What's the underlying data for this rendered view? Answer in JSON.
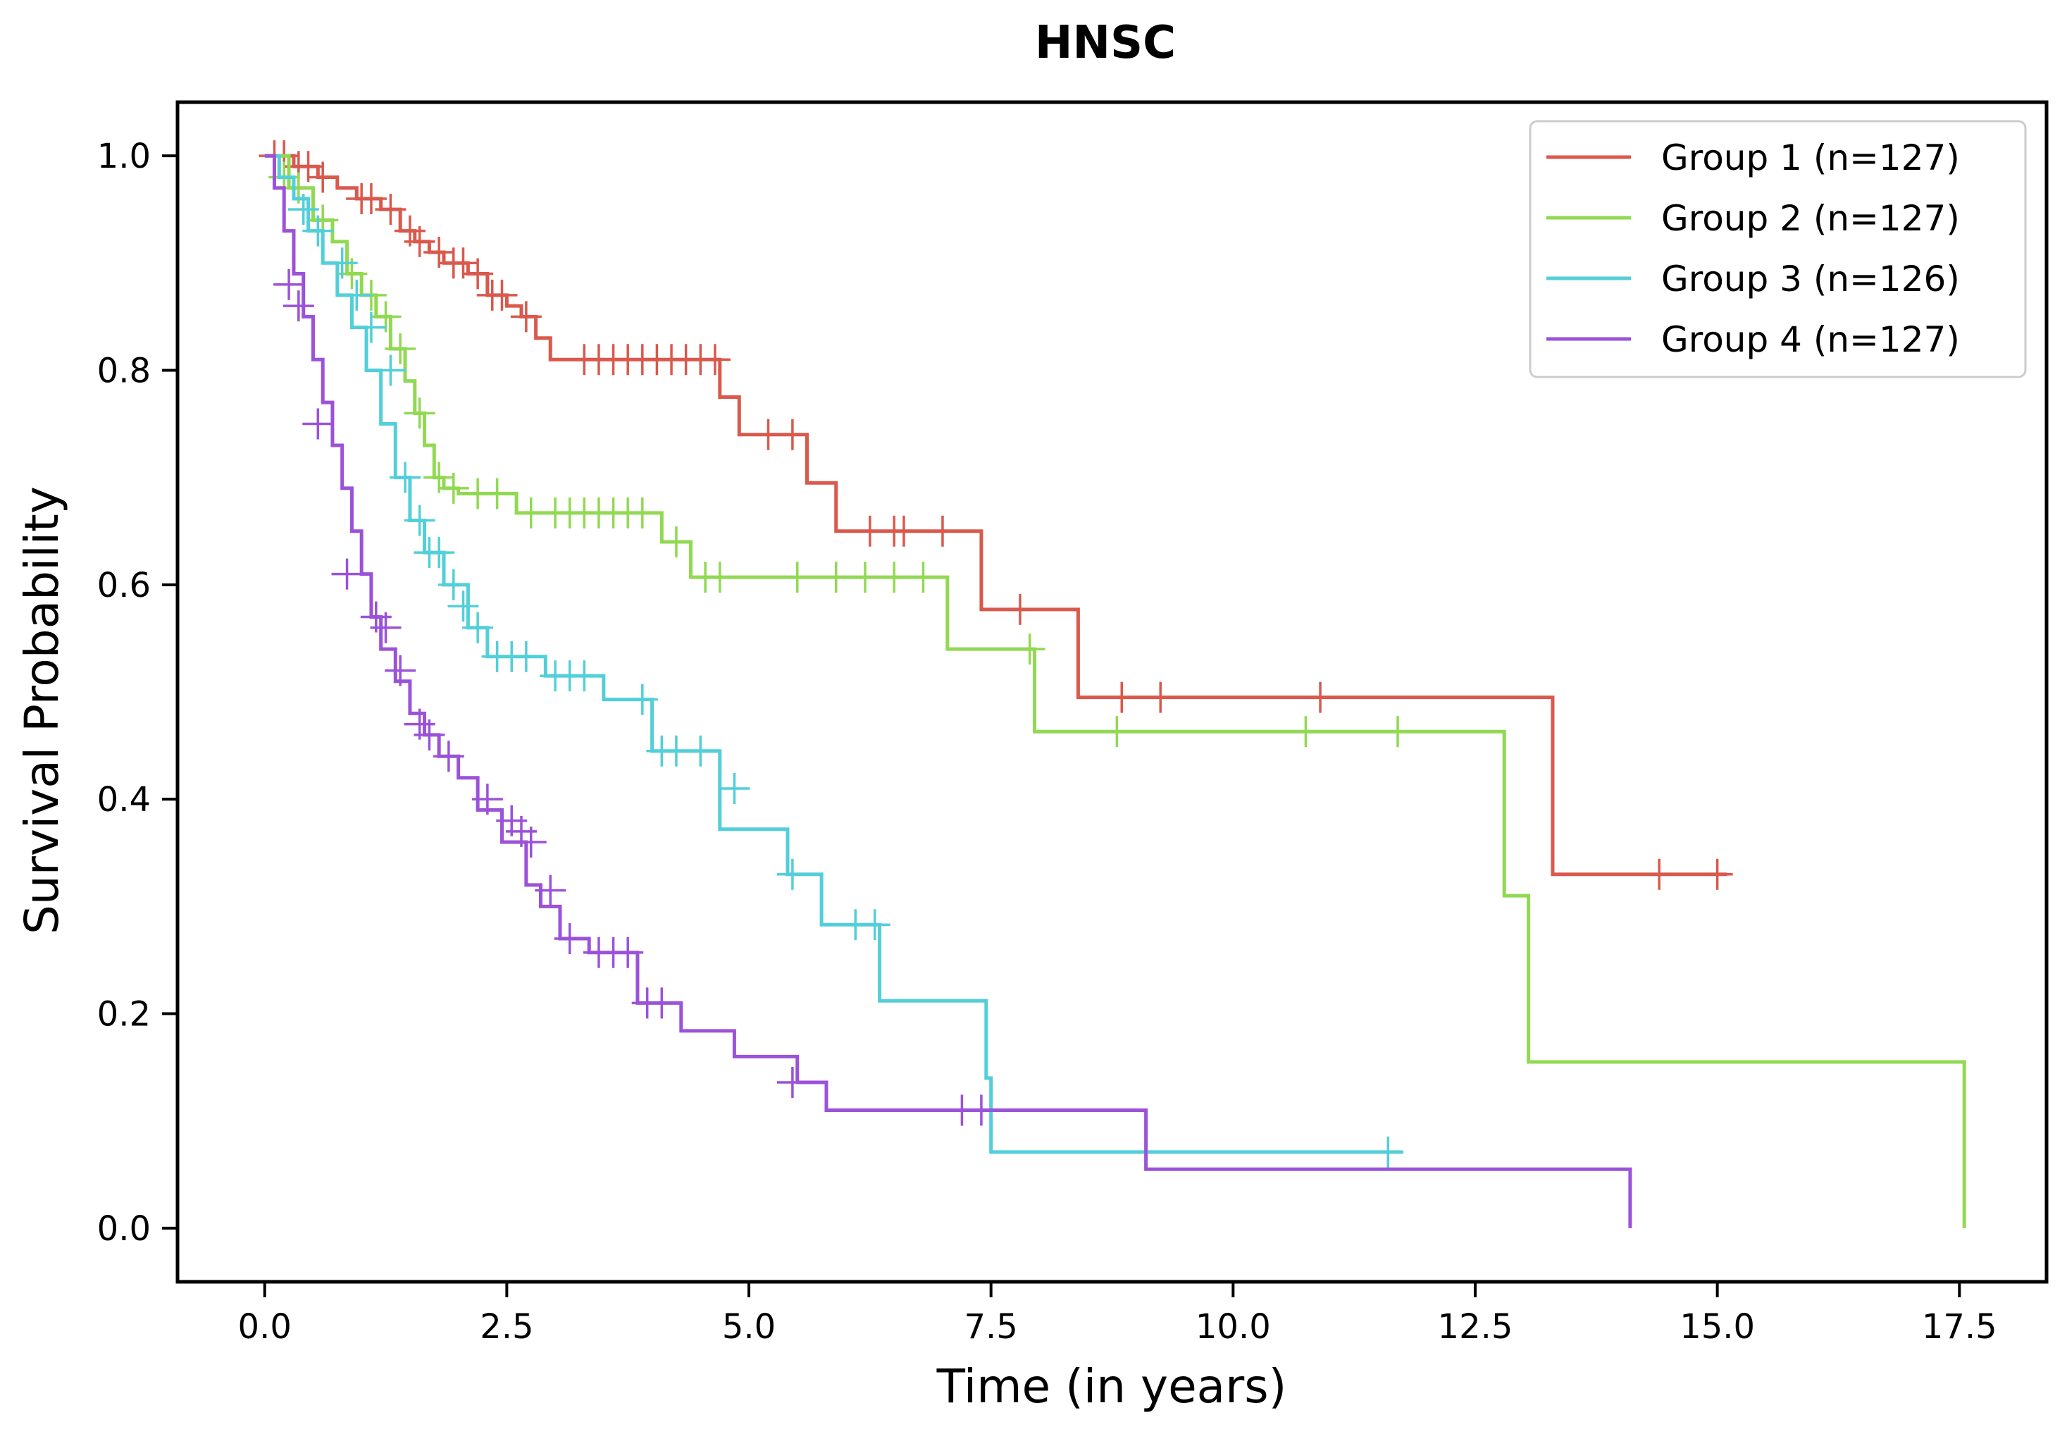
{
  "chart_data": {
    "type": "line",
    "title": "HNSC",
    "xlabel": "Time (in years)",
    "ylabel": "Survival Probability",
    "xlim": [
      -0.9,
      18.4
    ],
    "ylim": [
      -0.05,
      1.05
    ],
    "xticks": [
      0.0,
      2.5,
      5.0,
      7.5,
      10.0,
      12.5,
      15.0,
      17.5
    ],
    "xtick_labels": [
      "0.0",
      "2.5",
      "5.0",
      "7.5",
      "10.0",
      "12.5",
      "15.0",
      "17.5"
    ],
    "yticks": [
      0.0,
      0.2,
      0.4,
      0.6,
      0.8,
      1.0
    ],
    "ytick_labels": [
      "0.0",
      "0.2",
      "0.4",
      "0.6",
      "0.8",
      "1.0"
    ],
    "grid": false,
    "legend_position": "top-right",
    "step": "post",
    "series": [
      {
        "name": "Group 1 (n=127)",
        "color": "#d9594c",
        "x": [
          0.0,
          0.3,
          0.55,
          0.75,
          0.95,
          1.2,
          1.4,
          1.55,
          1.7,
          1.85,
          2.1,
          2.3,
          2.5,
          2.65,
          2.8,
          2.95,
          4.7,
          4.9,
          5.6,
          5.9,
          7.4,
          8.4,
          13.3,
          15.1
        ],
        "y": [
          1.0,
          0.99,
          0.98,
          0.97,
          0.96,
          0.95,
          0.93,
          0.92,
          0.91,
          0.9,
          0.89,
          0.87,
          0.86,
          0.85,
          0.83,
          0.81,
          0.775,
          0.74,
          0.695,
          0.65,
          0.577,
          0.495,
          0.33,
          0.33
        ],
        "censor_x": [
          0.1,
          0.2,
          0.35,
          0.45,
          0.6,
          1.0,
          1.1,
          1.3,
          1.5,
          1.6,
          1.8,
          1.95,
          2.05,
          2.2,
          2.35,
          2.45,
          2.7,
          3.3,
          3.45,
          3.6,
          3.75,
          3.9,
          4.05,
          4.2,
          4.35,
          4.5,
          4.65,
          5.2,
          5.45,
          6.25,
          6.5,
          6.6,
          7.0,
          7.8,
          8.85,
          9.25,
          10.9,
          14.4,
          15.0
        ],
        "censor_y": [
          1.0,
          1.0,
          0.99,
          0.99,
          0.98,
          0.96,
          0.96,
          0.95,
          0.93,
          0.92,
          0.91,
          0.9,
          0.9,
          0.89,
          0.87,
          0.87,
          0.85,
          0.81,
          0.81,
          0.81,
          0.81,
          0.81,
          0.81,
          0.81,
          0.81,
          0.81,
          0.81,
          0.74,
          0.74,
          0.65,
          0.65,
          0.65,
          0.65,
          0.577,
          0.495,
          0.495,
          0.495,
          0.33,
          0.33
        ]
      },
      {
        "name": "Group 2 (n=127)",
        "color": "#91d952",
        "x": [
          0.0,
          0.25,
          0.5,
          0.7,
          0.85,
          1.0,
          1.15,
          1.3,
          1.45,
          1.55,
          1.65,
          1.75,
          1.85,
          2.0,
          2.6,
          4.1,
          4.4,
          7.05,
          7.95,
          12.8,
          13.05,
          17.55
        ],
        "y": [
          1.0,
          0.97,
          0.94,
          0.92,
          0.89,
          0.87,
          0.85,
          0.82,
          0.79,
          0.76,
          0.73,
          0.7,
          0.69,
          0.685,
          0.667,
          0.64,
          0.607,
          0.54,
          0.463,
          0.31,
          0.155,
          0.0
        ],
        "censor_x": [
          0.2,
          0.35,
          0.6,
          0.9,
          1.1,
          1.25,
          1.4,
          1.6,
          1.8,
          1.95,
          2.2,
          2.4,
          2.75,
          3.0,
          3.15,
          3.3,
          3.45,
          3.6,
          3.75,
          3.9,
          4.25,
          4.55,
          4.7,
          5.5,
          5.9,
          6.2,
          6.5,
          6.8,
          7.9,
          8.8,
          10.75,
          11.7
        ],
        "censor_y": [
          0.98,
          0.97,
          0.94,
          0.89,
          0.87,
          0.85,
          0.82,
          0.76,
          0.7,
          0.69,
          0.685,
          0.685,
          0.667,
          0.667,
          0.667,
          0.667,
          0.667,
          0.667,
          0.667,
          0.667,
          0.64,
          0.607,
          0.607,
          0.607,
          0.607,
          0.607,
          0.607,
          0.607,
          0.54,
          0.463,
          0.463,
          0.463
        ]
      },
      {
        "name": "Group 3 (n=126)",
        "color": "#52cfd9",
        "x": [
          0.0,
          0.15,
          0.3,
          0.45,
          0.6,
          0.75,
          0.9,
          1.05,
          1.2,
          1.35,
          1.5,
          1.65,
          1.85,
          2.1,
          2.3,
          2.9,
          3.5,
          4.0,
          4.7,
          5.4,
          5.75,
          6.35,
          7.45,
          7.5,
          11.75
        ],
        "y": [
          1.0,
          0.98,
          0.96,
          0.93,
          0.9,
          0.87,
          0.84,
          0.8,
          0.75,
          0.7,
          0.66,
          0.63,
          0.6,
          0.56,
          0.533,
          0.515,
          0.493,
          0.445,
          0.372,
          0.33,
          0.283,
          0.212,
          0.14,
          0.071,
          0.071
        ],
        "censor_x": [
          0.4,
          0.55,
          0.8,
          0.95,
          1.1,
          1.3,
          1.45,
          1.6,
          1.7,
          1.8,
          1.95,
          2.05,
          2.2,
          2.4,
          2.55,
          2.7,
          3.0,
          3.15,
          3.3,
          3.9,
          4.1,
          4.25,
          4.5,
          4.85,
          5.45,
          6.1,
          6.3,
          11.6
        ],
        "censor_y": [
          0.95,
          0.93,
          0.9,
          0.87,
          0.84,
          0.8,
          0.7,
          0.66,
          0.63,
          0.63,
          0.6,
          0.58,
          0.56,
          0.533,
          0.533,
          0.533,
          0.515,
          0.515,
          0.515,
          0.493,
          0.445,
          0.445,
          0.445,
          0.41,
          0.33,
          0.283,
          0.283,
          0.071
        ]
      },
      {
        "name": "Group 4 (n=127)",
        "color": "#9b52d9",
        "x": [
          0.0,
          0.1,
          0.2,
          0.3,
          0.4,
          0.5,
          0.6,
          0.7,
          0.8,
          0.9,
          1.0,
          1.1,
          1.2,
          1.35,
          1.5,
          1.65,
          1.8,
          2.0,
          2.2,
          2.45,
          2.7,
          2.85,
          3.05,
          3.35,
          3.85,
          4.3,
          4.85,
          5.5,
          5.8,
          9.1,
          14.1
        ],
        "y": [
          1.0,
          0.97,
          0.93,
          0.89,
          0.85,
          0.81,
          0.77,
          0.73,
          0.69,
          0.65,
          0.61,
          0.57,
          0.54,
          0.51,
          0.48,
          0.46,
          0.44,
          0.42,
          0.39,
          0.36,
          0.32,
          0.3,
          0.27,
          0.257,
          0.21,
          0.184,
          0.16,
          0.136,
          0.11,
          0.055,
          0.0
        ],
        "censor_x": [
          0.25,
          0.35,
          0.55,
          0.85,
          1.15,
          1.25,
          1.4,
          1.6,
          1.7,
          1.9,
          2.3,
          2.55,
          2.65,
          2.75,
          2.95,
          3.15,
          3.45,
          3.6,
          3.75,
          3.95,
          4.1,
          5.45,
          7.2,
          7.4
        ],
        "censor_y": [
          0.88,
          0.86,
          0.75,
          0.61,
          0.57,
          0.56,
          0.52,
          0.47,
          0.46,
          0.44,
          0.4,
          0.38,
          0.37,
          0.36,
          0.315,
          0.27,
          0.257,
          0.257,
          0.257,
          0.21,
          0.21,
          0.136,
          0.11,
          0.11
        ]
      }
    ]
  }
}
